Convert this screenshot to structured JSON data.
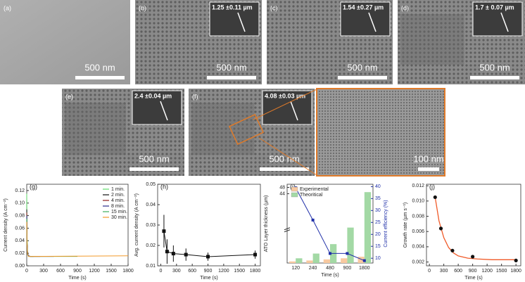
{
  "images": [
    {
      "label": "(a)",
      "scale": "500 nm"
    },
    {
      "label": "(b)",
      "scale": "500 nm",
      "inset": "1.25 ±0.11 µm"
    },
    {
      "label": "(c)",
      "scale": "500 nm",
      "inset": "1.54 ±0.27 µm"
    },
    {
      "label": "(d)",
      "scale": "500 nm",
      "inset": "1.7 ± 0.07 µm"
    },
    {
      "label": "(e)",
      "scale": "500 nm",
      "inset": "2.4 ±0.04 µm"
    },
    {
      "label": "(f)",
      "scale": "500 nm",
      "inset": "4.08 ±0.03 µm"
    },
    {
      "scale": "100 nm"
    }
  ],
  "chart_data": [
    {
      "type": "line",
      "label": "(g)",
      "x_label": "Time (s)",
      "y_label": "Current density (A cm⁻²)",
      "xlim": [
        0,
        1800
      ],
      "xticks": [
        0,
        300,
        600,
        900,
        1200,
        1500,
        1800
      ],
      "ylim": [
        0,
        0.13
      ],
      "yticks": [
        {
          "value": 0,
          "label": "0.00"
        },
        0.02,
        0.04,
        0.06,
        0.08,
        {
          "value": 0.1,
          "label": "0.10"
        },
        0.12
      ],
      "legend": "top-right",
      "series": [
        {
          "name": "1 min.",
          "color": "#5fdc6a",
          "x": [
            0,
            5,
            15,
            30,
            60
          ],
          "values": [
            0.115,
            0.05,
            0.02,
            0.016,
            0.015
          ]
        },
        {
          "name": "2 min.",
          "color": "#111111",
          "x": [
            0,
            5,
            15,
            30,
            60,
            120
          ],
          "values": [
            0.09,
            0.04,
            0.02,
            0.016,
            0.015,
            0.015
          ]
        },
        {
          "name": "4 min.",
          "color": "#8b1a1a",
          "x": [
            0,
            5,
            15,
            30,
            60,
            240
          ],
          "values": [
            0.085,
            0.038,
            0.019,
            0.016,
            0.015,
            0.015
          ]
        },
        {
          "name": "8 min.",
          "color": "#2a2a8a",
          "x": [
            0,
            5,
            15,
            30,
            60,
            480
          ],
          "values": [
            0.08,
            0.036,
            0.019,
            0.016,
            0.015,
            0.015
          ]
        },
        {
          "name": "15 min.",
          "color": "#3cae5a",
          "x": [
            0,
            5,
            15,
            30,
            60,
            900
          ],
          "values": [
            0.075,
            0.035,
            0.018,
            0.015,
            0.015,
            0.015
          ]
        },
        {
          "name": "30 min.",
          "color": "#f39a2a",
          "x": [
            0,
            5,
            15,
            30,
            60,
            1800
          ],
          "values": [
            0.07,
            0.033,
            0.018,
            0.015,
            0.015,
            0.016
          ]
        }
      ]
    },
    {
      "type": "errorbar",
      "label": "(h)",
      "x_label": "Time (s)",
      "y_label": "Avg. current density (A cm⁻²)",
      "xlim": [
        -60,
        1900
      ],
      "xticks": [
        0,
        300,
        600,
        900,
        1200,
        1500,
        1800
      ],
      "ylim": [
        0.01,
        0.05
      ],
      "yticks": [
        0.01,
        0.02,
        0.03,
        0.04,
        0.05
      ],
      "color": "#111111",
      "x": [
        60,
        120,
        240,
        480,
        900,
        1800
      ],
      "values": [
        0.027,
        0.017,
        0.016,
        0.0155,
        0.0145,
        0.0155
      ],
      "errors": [
        0.008,
        0.006,
        0.004,
        0.003,
        0.002,
        0.002
      ]
    },
    {
      "type": "bar",
      "label": "(i)",
      "x_label": "Time (s)",
      "y_label": "ATO Layer thickness (µm)",
      "y2_label": "Current efficiency (%)",
      "categories": [
        "120",
        "240",
        "480",
        "900",
        "1800"
      ],
      "ylim": [
        0,
        50
      ],
      "yticks": [
        44,
        48
      ],
      "y2lim": [
        8,
        41
      ],
      "y2ticks": [
        10,
        15,
        20,
        25,
        30,
        35,
        40
      ],
      "legend": "top-left",
      "series": [
        {
          "name": "Experimental",
          "color": "#f8c9a0",
          "values": [
            1,
            1.6,
            2.3,
            3,
            4
          ]
        },
        {
          "name": "Theoritical",
          "color": "#a3d9a5",
          "values": [
            3,
            6,
            12,
            22.5,
            45
          ]
        },
        {
          "kind": "line",
          "axis": "y2",
          "color": "#1f2fa8",
          "values": [
            39.5,
            26,
            12,
            12,
            9
          ]
        }
      ]
    },
    {
      "type": "scatter",
      "label": "(j)",
      "x_label": "Time (s)",
      "y_label": "Growth rate (µm s⁻¹)",
      "xlim": [
        -60,
        1900
      ],
      "xticks": [
        0,
        300,
        600,
        900,
        1200,
        1500,
        1800
      ],
      "ylim": [
        0.0015,
        0.0122
      ],
      "yticks": [
        0.002,
        0.004,
        0.006,
        0.008,
        {
          "value": 0.01,
          "label": "0.010"
        },
        0.012
      ],
      "series": [
        {
          "kind": "line",
          "color": "#f05a28",
          "x": [
            120,
            200,
            300,
            400,
            500,
            600,
            800,
            1000,
            1300,
            1800
          ],
          "values": [
            0.0105,
            0.0074,
            0.0052,
            0.0039,
            0.0032,
            0.0028,
            0.0025,
            0.0024,
            0.0023,
            0.0023
          ]
        },
        {
          "color": "#111111",
          "x": [
            120,
            240,
            480,
            900,
            1800
          ],
          "values": [
            0.0105,
            0.0064,
            0.0035,
            0.0027,
            0.0022
          ]
        }
      ]
    }
  ]
}
